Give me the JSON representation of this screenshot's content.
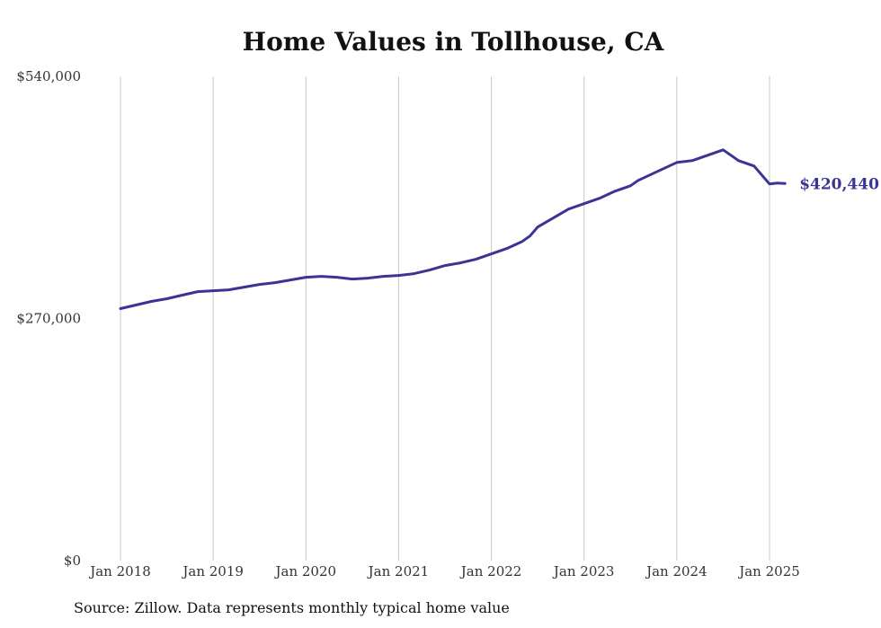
{
  "source_note": "Source: Zillow. Data represents monthly typical home value",
  "chart_data": {
    "type": "line",
    "title": "Home Values in Tollhouse, CA",
    "xlabel": "",
    "ylabel": "",
    "ylim": [
      0,
      540000
    ],
    "y_ticks": [
      {
        "value": 0,
        "label": "$0"
      },
      {
        "value": 270000,
        "label": "$270,000"
      },
      {
        "value": 540000,
        "label": "$540,000"
      }
    ],
    "x_ticks": [
      {
        "value": "2018-01",
        "label": "Jan 2018"
      },
      {
        "value": "2019-01",
        "label": "Jan 2019"
      },
      {
        "value": "2020-01",
        "label": "Jan 2020"
      },
      {
        "value": "2021-01",
        "label": "Jan 2021"
      },
      {
        "value": "2022-01",
        "label": "Jan 2022"
      },
      {
        "value": "2023-01",
        "label": "Jan 2023"
      },
      {
        "value": "2024-01",
        "label": "Jan 2024"
      },
      {
        "value": "2025-01",
        "label": "Jan 2025"
      }
    ],
    "x_grid": true,
    "series_color": "#3b3494",
    "end_label": "$420,440",
    "series": [
      {
        "x": [
          "2018-01",
          "2018-03",
          "2018-05",
          "2018-07",
          "2018-09",
          "2018-11",
          "2019-01",
          "2019-03",
          "2019-05",
          "2019-07",
          "2019-09",
          "2019-11",
          "2020-01",
          "2020-03",
          "2020-05",
          "2020-07",
          "2020-09",
          "2020-11",
          "2021-01",
          "2021-03",
          "2021-05",
          "2021-07",
          "2021-09",
          "2021-11",
          "2022-01",
          "2022-03",
          "2022-05",
          "2022-06",
          "2022-07",
          "2022-09",
          "2022-11",
          "2023-01",
          "2023-03",
          "2023-05",
          "2023-07",
          "2023-08",
          "2023-10",
          "2023-12",
          "2024-01",
          "2024-03",
          "2024-05",
          "2024-07",
          "2024-09",
          "2024-11",
          "2025-01",
          "2025-02",
          "2025-03"
        ],
        "values": [
          281000,
          285000,
          289000,
          292000,
          296000,
          300000,
          301000,
          302000,
          305000,
          308000,
          310000,
          313000,
          316000,
          317000,
          316000,
          314000,
          315000,
          317000,
          318000,
          320000,
          324000,
          329000,
          332000,
          336000,
          342000,
          348000,
          356000,
          362000,
          372000,
          382000,
          392000,
          398000,
          404000,
          412000,
          418000,
          424000,
          432000,
          440000,
          444000,
          446000,
          452000,
          458000,
          446000,
          440000,
          420000,
          421000,
          420440
        ]
      }
    ]
  }
}
